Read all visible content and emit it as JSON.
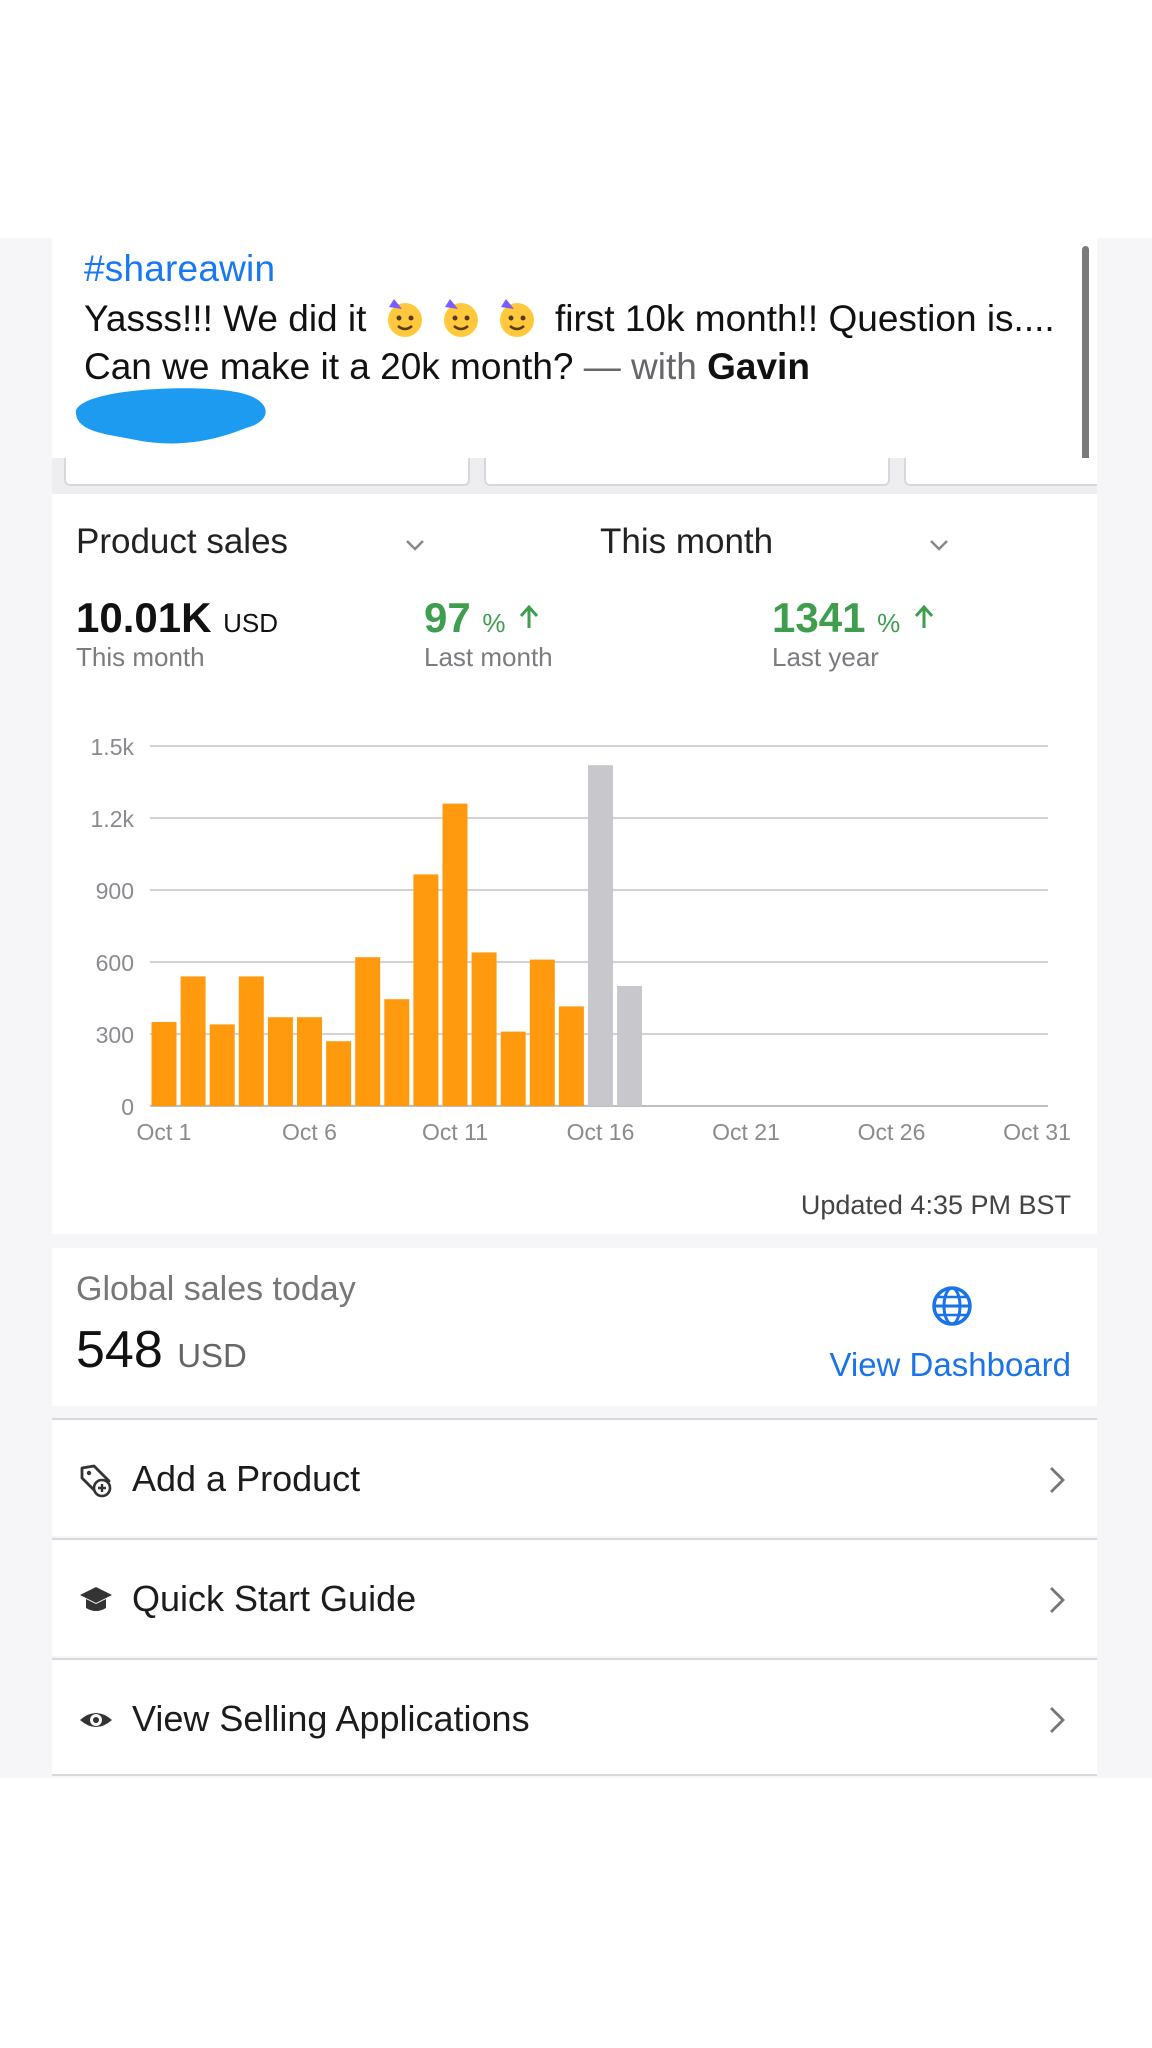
{
  "post": {
    "hashtag": "#shareawin",
    "text_before": "Yasss!!! We did it",
    "emojis": [
      "party-face-emoji",
      "party-face-emoji",
      "party-face-emoji"
    ],
    "text_after": "first 10k month!! Question is.... Can we make it a 20k month?",
    "with_text": "— with",
    "tagged_name": "Gavin"
  },
  "sales": {
    "metric_dropdown": "Product sales",
    "period_dropdown": "This month",
    "stats": [
      {
        "value": "10.01K",
        "unit": "USD",
        "label": "This month"
      },
      {
        "value": "97",
        "unit": "%",
        "label": "Last month",
        "trend": "up"
      },
      {
        "value": "1341",
        "unit": "%",
        "label": "Last year",
        "trend": "up"
      }
    ],
    "updated": "Updated 4:35 PM BST"
  },
  "chart_data": {
    "type": "bar",
    "title": "",
    "xlabel": "",
    "ylabel": "",
    "y_ticks": [
      "0",
      "300",
      "600",
      "900",
      "1.2k",
      "1.5k"
    ],
    "ylim": [
      0,
      1500
    ],
    "x_tick_labels": [
      "Oct 1",
      "Oct 6",
      "Oct 11",
      "Oct 16",
      "Oct 21",
      "Oct 26",
      "Oct 31"
    ],
    "categories": [
      "Oct 1",
      "Oct 2",
      "Oct 3",
      "Oct 4",
      "Oct 5",
      "Oct 6",
      "Oct 7",
      "Oct 8",
      "Oct 9",
      "Oct 10",
      "Oct 11",
      "Oct 12",
      "Oct 13",
      "Oct 14",
      "Oct 15",
      "Oct 16",
      "Oct 17"
    ],
    "series": [
      {
        "color": "#ff9a0e",
        "values": [
          350,
          540,
          340,
          540,
          370,
          370,
          270,
          620,
          445,
          965,
          1260,
          640,
          310,
          610,
          415,
          null,
          null
        ]
      },
      {
        "color": "#c7c7cc",
        "values": [
          null,
          null,
          null,
          null,
          null,
          null,
          null,
          null,
          null,
          null,
          null,
          null,
          null,
          null,
          null,
          1420,
          500
        ]
      }
    ],
    "grid": true
  },
  "global": {
    "label": "Global sales today",
    "value": "548",
    "unit": "USD",
    "link": "View Dashboard"
  },
  "menu": [
    {
      "label": "Add a Product",
      "icon": "tag-add-icon"
    },
    {
      "label": "Quick Start Guide",
      "icon": "graduation-cap-icon"
    },
    {
      "label": "View Selling Applications",
      "icon": "eye-icon"
    }
  ]
}
